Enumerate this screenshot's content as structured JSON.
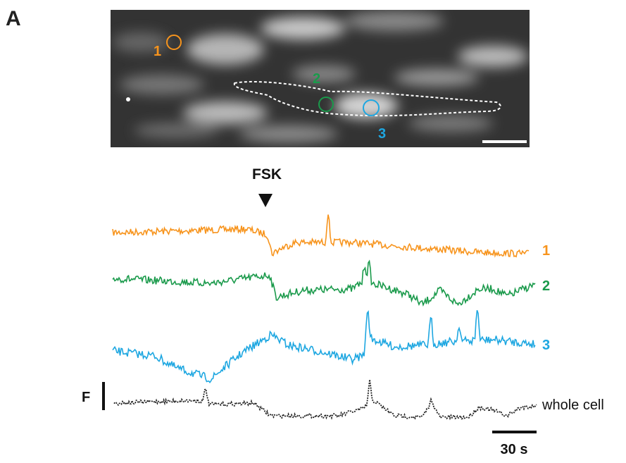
{
  "panel_label": "A",
  "image": {
    "roi_labels": [
      "1",
      "2",
      "3"
    ]
  },
  "stimulus": "FSK",
  "traces": [
    {
      "label": "1"
    },
    {
      "label": "2"
    },
    {
      "label": "3"
    },
    {
      "label": "whole cell"
    }
  ],
  "scale_bars": {
    "y": "F",
    "x": "30 s"
  }
}
